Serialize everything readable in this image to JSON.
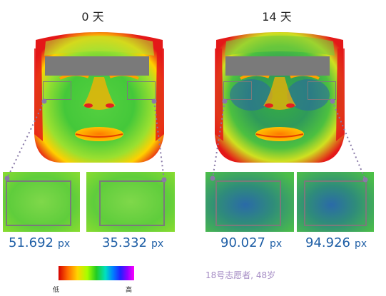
{
  "panels": [
    {
      "day_label": "0 天",
      "left_value": "51.692",
      "right_value": "35.332",
      "unit": "px"
    },
    {
      "day_label": "14 天",
      "left_value": "90.027",
      "right_value": "94.926",
      "unit": "px"
    }
  ],
  "scale": {
    "low_label": "低",
    "high_label": "高"
  },
  "volunteer_note": "18号志愿者, 48岁",
  "colors": {
    "value_text": "#1f5fa6",
    "roi_border": "#7a7a7a",
    "note_text": "#a58cc4"
  }
}
